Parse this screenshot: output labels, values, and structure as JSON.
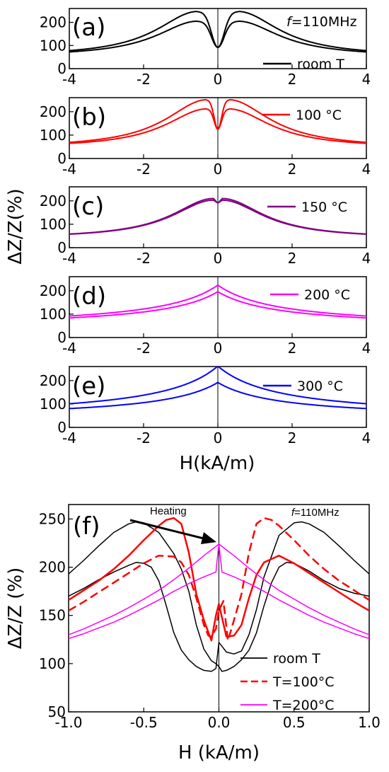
{
  "figure": {
    "shared_ylabel": "ΔZ/Z(%)",
    "shared_xlabel": "H(kA/m)"
  },
  "chart_data": [
    {
      "id": "a",
      "type": "line",
      "panel_label": "(a)",
      "annotation": "f=110MHz",
      "xlim": [
        -4,
        4
      ],
      "ylim": [
        0,
        260
      ],
      "xticks": [
        -4,
        -2,
        0,
        2,
        4
      ],
      "xtick_labels": [
        "-4",
        "-2",
        "0",
        "2",
        "4"
      ],
      "yticks": [
        0,
        100,
        200
      ],
      "ytick_labels": [
        "0",
        "100",
        "200"
      ],
      "legend": [
        {
          "label": "room T",
          "color": "#000000",
          "dash": "solid"
        }
      ],
      "series": [
        {
          "color": "#000000",
          "kind": "lorentz",
          "peak_x": 0.55,
          "peak_y": 247,
          "min_y": 92,
          "tail_y": 52,
          "center_width": 0.12
        },
        {
          "color": "#000000",
          "kind": "lorentz",
          "peak_x": 0.55,
          "peak_y": 205,
          "min_y": 92,
          "tail_y": 52,
          "center_width": 0.12
        }
      ]
    },
    {
      "id": "b",
      "type": "line",
      "panel_label": "(b)",
      "xlim": [
        -4,
        4
      ],
      "ylim": [
        0,
        260
      ],
      "xticks": [
        -4,
        -2,
        0,
        2,
        4
      ],
      "xtick_labels": [
        "-4",
        "-2",
        "0",
        "2",
        "4"
      ],
      "yticks": [
        0,
        100,
        200
      ],
      "ytick_labels": [
        "0",
        "100",
        "200"
      ],
      "legend": [
        {
          "label": "100 °C",
          "color": "#ff0000",
          "dash": "solid"
        }
      ],
      "series": [
        {
          "color": "#ff0000",
          "kind": "lorentz",
          "peak_x": 0.3,
          "peak_y": 251,
          "min_y": 125,
          "tail_y": 45,
          "center_width": 0.07
        },
        {
          "color": "#ff0000",
          "kind": "lorentz",
          "peak_x": 0.3,
          "peak_y": 212,
          "min_y": 125,
          "tail_y": 45,
          "center_width": 0.07
        }
      ]
    },
    {
      "id": "c",
      "type": "line",
      "panel_label": "(c)",
      "xlim": [
        -4,
        4
      ],
      "ylim": [
        0,
        260
      ],
      "xticks": [
        -4,
        -2,
        0,
        2,
        4
      ],
      "xtick_labels": [
        "-4",
        "-2",
        "0",
        "2",
        "4"
      ],
      "yticks": [
        0,
        100,
        200
      ],
      "ytick_labels": [
        "0",
        "100",
        "200"
      ],
      "legend": [
        {
          "label": "150 °C",
          "color": "#800080",
          "dash": "solid"
        }
      ],
      "series": [
        {
          "color": "#800080",
          "kind": "lorentz",
          "peak_x": 0.12,
          "peak_y": 210,
          "min_y": 192,
          "tail_y": 40,
          "center_width": 0.04
        },
        {
          "color": "#800080",
          "kind": "lorentz",
          "peak_x": 0.12,
          "peak_y": 203,
          "min_y": 192,
          "tail_y": 40,
          "center_width": 0.04
        }
      ]
    },
    {
      "id": "d",
      "type": "line",
      "panel_label": "(d)",
      "xlim": [
        -4,
        4
      ],
      "ylim": [
        0,
        260
      ],
      "xticks": [
        -4,
        -2,
        0,
        2,
        4
      ],
      "xtick_labels": [
        "-4",
        "-2",
        "0",
        "2",
        "4"
      ],
      "yticks": [
        0,
        100,
        200
      ],
      "ytick_labels": [
        "0",
        "100",
        "200"
      ],
      "legend": [
        {
          "label": "200 °C",
          "color": "#ff00ff",
          "dash": "solid"
        }
      ],
      "series": [
        {
          "color": "#ff00ff",
          "kind": "cusp",
          "peak_y": 224,
          "tail_y": 37
        },
        {
          "color": "#ff00ff",
          "kind": "cusp",
          "peak_y": 196,
          "tail_y": 37
        }
      ]
    },
    {
      "id": "e",
      "type": "line",
      "panel_label": "(e)",
      "xlim": [
        -4,
        4
      ],
      "ylim": [
        0,
        260
      ],
      "xticks": [
        -4,
        -2,
        0,
        2,
        4
      ],
      "xtick_labels": [
        "-4",
        "-2",
        "0",
        "2",
        "4"
      ],
      "yticks": [
        0,
        100,
        200
      ],
      "ytick_labels": [
        "0",
        "100",
        "200"
      ],
      "legend": [
        {
          "label": "300 °C",
          "color": "#0000ff",
          "dash": "solid"
        }
      ],
      "series": [
        {
          "color": "#0000ff",
          "kind": "cusp",
          "peak_y": 262,
          "tail_y": 34
        },
        {
          "color": "#0000ff",
          "kind": "cusp",
          "peak_y": 192,
          "tail_y": 34
        }
      ]
    },
    {
      "id": "f",
      "type": "line",
      "panel_label": "(f)",
      "annotation": "f=110MHz",
      "arrow_label": "Heating",
      "xlabel": "H (kA/m)",
      "ylabel": "ΔZ/Z (%)",
      "xlim": [
        -1.0,
        1.0
      ],
      "ylim": [
        50,
        265
      ],
      "xticks": [
        -1.0,
        -0.5,
        0.0,
        0.5,
        1.0
      ],
      "xtick_labels": [
        "-1.0",
        "-0.5",
        "0.0",
        "0.5",
        "1.0"
      ],
      "yticks": [
        50,
        100,
        150,
        200,
        250
      ],
      "ytick_labels": [
        "50",
        "100",
        "150",
        "200",
        "250"
      ],
      "legend": [
        {
          "label": "room T",
          "color": "#000000",
          "dash": "solid"
        },
        {
          "label": "T=100°C",
          "color": "#ff0000",
          "dash": "dashed"
        },
        {
          "label": "T=200°C",
          "color": "#ff00ff",
          "dash": "solid"
        }
      ],
      "series": [
        {
          "name": "room T",
          "color": "#000000",
          "dash": "solid",
          "width": 1.5,
          "x": [
            -1.0,
            -0.9,
            -0.8,
            -0.7,
            -0.6,
            -0.55,
            -0.5,
            -0.4,
            -0.3,
            -0.25,
            -0.2,
            -0.15,
            -0.1,
            -0.05,
            -0.02,
            0.0,
            0.02,
            0.05,
            0.1,
            0.15,
            0.2,
            0.25,
            0.3,
            0.35,
            0.4,
            0.45,
            0.5,
            0.55,
            0.6,
            0.7,
            0.8,
            0.9,
            1.0
          ],
          "y": [
            193,
            207,
            222,
            236,
            245,
            247,
            246,
            236,
            214,
            198,
            175,
            140,
            115,
            103,
            100,
            97,
            92,
            93,
            97,
            104,
            114,
            132,
            160,
            184,
            200,
            205,
            204,
            200,
            196,
            186,
            178,
            173,
            170
          ]
        },
        {
          "name": "room T",
          "color": "#000000",
          "dash": "solid",
          "width": 1.5,
          "x": [
            -1.0,
            -0.9,
            -0.8,
            -0.7,
            -0.6,
            -0.55,
            -0.5,
            -0.45,
            -0.4,
            -0.35,
            -0.3,
            -0.25,
            -0.2,
            -0.15,
            -0.1,
            -0.05,
            -0.02,
            0.0,
            0.02,
            0.05,
            0.1,
            0.15,
            0.2,
            0.25,
            0.3,
            0.4,
            0.5,
            0.55,
            0.6,
            0.7,
            0.8,
            0.9,
            1.0
          ],
          "y": [
            170,
            178,
            187,
            195,
            202,
            205,
            204,
            200,
            186,
            160,
            132,
            114,
            104,
            97,
            93,
            92,
            95,
            122,
            118,
            112,
            110,
            113,
            130,
            156,
            190,
            233,
            246,
            247,
            245,
            236,
            222,
            207,
            193
          ]
        },
        {
          "name": "T=100°C",
          "color": "#ff0000",
          "dash": "dashed",
          "width": 2.5,
          "x": [
            -1.0,
            -0.9,
            -0.8,
            -0.7,
            -0.6,
            -0.5,
            -0.4,
            -0.3,
            -0.25,
            -0.2,
            -0.15,
            -0.1,
            -0.07,
            -0.05,
            -0.02,
            0.0,
            0.03,
            0.06,
            0.1,
            0.15,
            0.2,
            0.25,
            0.3,
            0.35,
            0.4,
            0.5,
            0.6,
            0.7,
            0.8,
            0.9,
            1.0
          ],
          "y": [
            155,
            164,
            174,
            184,
            194,
            204,
            212,
            211,
            205,
            192,
            168,
            140,
            129,
            128,
            136,
            155,
            165,
            124,
            145,
            172,
            215,
            245,
            251,
            249,
            243,
            228,
            212,
            198,
            186,
            176,
            166
          ]
        },
        {
          "name": "T=100°C",
          "color": "#ff0000",
          "dash": "solid",
          "width": 2.5,
          "x": [
            -1.0,
            -0.9,
            -0.8,
            -0.7,
            -0.6,
            -0.5,
            -0.4,
            -0.35,
            -0.3,
            -0.25,
            -0.2,
            -0.15,
            -0.1,
            -0.05,
            -0.02,
            0.0,
            0.02,
            0.05,
            0.1,
            0.15,
            0.2,
            0.25,
            0.3,
            0.4,
            0.5,
            0.6,
            0.7,
            0.8,
            0.9,
            1.0
          ],
          "y": [
            166,
            176,
            186,
            198,
            212,
            228,
            243,
            249,
            251,
            245,
            215,
            172,
            145,
            124,
            150,
            162,
            148,
            128,
            129,
            140,
            168,
            192,
            205,
            212,
            204,
            194,
            184,
            174,
            164,
            155
          ]
        },
        {
          "name": "T=200°C",
          "color": "#ff00ff",
          "dash": "solid",
          "width": 1.5,
          "x": [
            -1.0,
            -0.9,
            -0.8,
            -0.7,
            -0.6,
            -0.5,
            -0.4,
            -0.3,
            -0.2,
            -0.1,
            -0.05,
            0.0,
            0.01,
            0.02,
            0.1,
            0.2,
            0.3,
            0.4,
            0.5,
            0.6,
            0.7,
            0.8,
            0.9,
            1.0
          ],
          "y": [
            130,
            136,
            143,
            150,
            158,
            167,
            176,
            187,
            199,
            212,
            218,
            224,
            210,
            195,
            190,
            183,
            175,
            166,
            158,
            150,
            143,
            137,
            131,
            126
          ]
        },
        {
          "name": "T=200°C",
          "color": "#ff00ff",
          "dash": "solid",
          "width": 1.5,
          "x": [
            -1.0,
            -0.9,
            -0.8,
            -0.7,
            -0.6,
            -0.5,
            -0.4,
            -0.3,
            -0.2,
            -0.1,
            -0.02,
            -0.01,
            0.0,
            0.05,
            0.1,
            0.2,
            0.3,
            0.4,
            0.5,
            0.6,
            0.7,
            0.8,
            0.9,
            1.0
          ],
          "y": [
            126,
            131,
            137,
            143,
            150,
            158,
            166,
            175,
            183,
            190,
            195,
            210,
            224,
            218,
            212,
            199,
            187,
            176,
            167,
            158,
            150,
            143,
            136,
            130
          ]
        }
      ]
    }
  ]
}
